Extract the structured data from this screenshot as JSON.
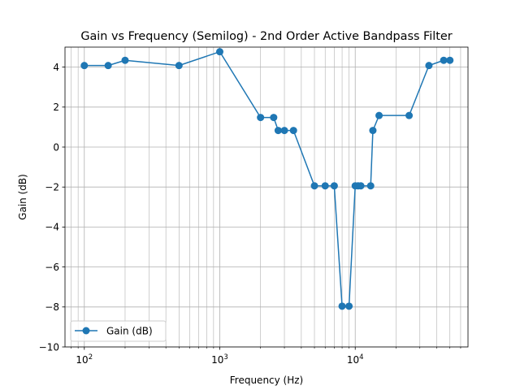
{
  "chart_data": {
    "type": "line",
    "title": "Gain vs Frequency (Semilog) - 2nd Order Active Bandpass Filter",
    "xlabel": "Frequency (Hz)",
    "ylabel": "Gain (dB)",
    "xscale": "log",
    "xlim": [
      72,
      68000
    ],
    "ylim": [
      -10,
      5
    ],
    "x_ticks": [
      {
        "value": 100,
        "base": "10",
        "exp": "2"
      },
      {
        "value": 1000,
        "base": "10",
        "exp": "3"
      },
      {
        "value": 10000,
        "base": "10",
        "exp": "4"
      }
    ],
    "y_ticks": [
      4,
      2,
      0,
      -2,
      -4,
      -6,
      -8,
      -10
    ],
    "y_tick_labels": [
      "4",
      "2",
      "0",
      "−2",
      "−4",
      "−6",
      "−8",
      "−10"
    ],
    "grid": true,
    "legend_position": "lower-left",
    "series": [
      {
        "name": "Gain (dB)",
        "color": "#1f77b4",
        "marker": "circle",
        "x": [
          100,
          150,
          200,
          500,
          1000,
          2000,
          2500,
          2700,
          3000,
          3500,
          5000,
          6000,
          7000,
          8000,
          9000,
          10000,
          10500,
          11000,
          13000,
          13500,
          15000,
          25000,
          35000,
          45000,
          50000
        ],
        "y": [
          4.08,
          4.08,
          4.34,
          4.08,
          4.77,
          1.48,
          1.48,
          0.83,
          0.83,
          0.83,
          -1.94,
          -1.94,
          -1.94,
          -7.96,
          -7.96,
          -1.94,
          -1.94,
          -1.94,
          -1.94,
          0.83,
          1.58,
          1.58,
          4.08,
          4.34,
          4.34
        ]
      }
    ]
  }
}
